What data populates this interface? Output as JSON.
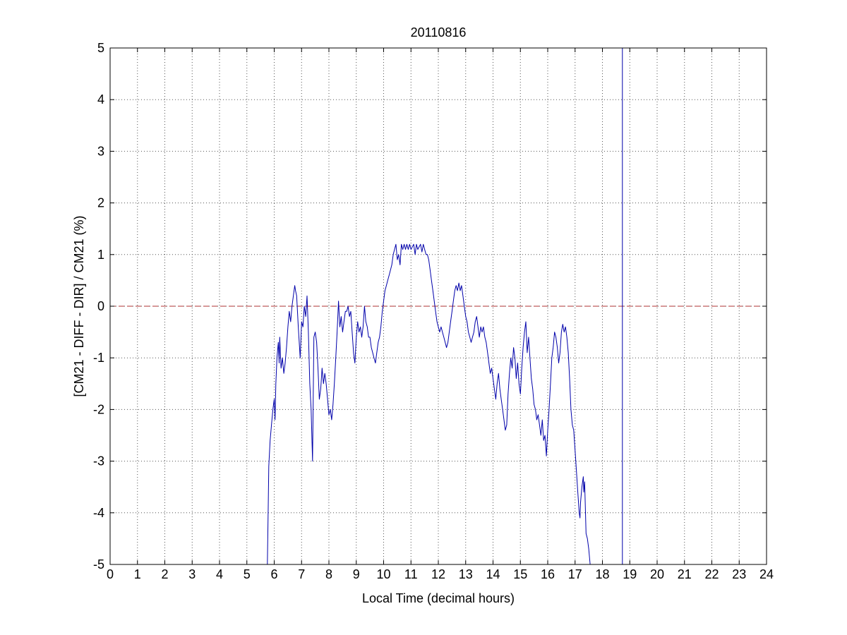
{
  "chart_data": {
    "type": "line",
    "title": "20110816",
    "xlabel": "Local Time (decimal hours)",
    "ylabel": "[CM21 - DIFF - DIR] / CM21 (%)",
    "xlim": [
      0,
      24
    ],
    "ylim": [
      -5,
      5
    ],
    "xticks": [
      "0",
      "1",
      "2",
      "3",
      "4",
      "5",
      "6",
      "7",
      "8",
      "9",
      "10",
      "11",
      "12",
      "13",
      "14",
      "15",
      "16",
      "17",
      "18",
      "19",
      "20",
      "21",
      "22",
      "23",
      "24"
    ],
    "yticks": [
      "5",
      "4",
      "3",
      "2",
      "1",
      "0",
      "-1",
      "-2",
      "-3",
      "-4",
      "-5"
    ],
    "grid": true,
    "colors": {
      "series": "#0000aa",
      "reference": "#b03030",
      "grid": "#555555"
    },
    "reference_line": {
      "y": 0,
      "style": "dashed"
    },
    "vertical_line": {
      "x": 18.73,
      "y_from": -5,
      "y_to": 5
    },
    "series": [
      {
        "color": "#0000aa",
        "points": [
          [
            5.75,
            -5.0
          ],
          [
            5.78,
            -3.9
          ],
          [
            5.8,
            -3.1
          ],
          [
            5.85,
            -2.6
          ],
          [
            5.9,
            -2.3
          ],
          [
            5.95,
            -2.0
          ],
          [
            6.0,
            -1.8
          ],
          [
            6.03,
            -2.2
          ],
          [
            6.06,
            -1.5
          ],
          [
            6.1,
            -1.0
          ],
          [
            6.15,
            -0.7
          ],
          [
            6.18,
            -1.1
          ],
          [
            6.2,
            -0.6
          ],
          [
            6.25,
            -1.2
          ],
          [
            6.3,
            -1.0
          ],
          [
            6.35,
            -1.3
          ],
          [
            6.4,
            -1.1
          ],
          [
            6.45,
            -0.8
          ],
          [
            6.5,
            -0.4
          ],
          [
            6.55,
            -0.1
          ],
          [
            6.6,
            -0.3
          ],
          [
            6.65,
            0.0
          ],
          [
            6.7,
            0.2
          ],
          [
            6.75,
            0.4
          ],
          [
            6.78,
            0.3
          ],
          [
            6.82,
            0.2
          ],
          [
            6.88,
            -0.4
          ],
          [
            6.95,
            -1.0
          ],
          [
            7.0,
            -0.3
          ],
          [
            7.05,
            -0.4
          ],
          [
            7.1,
            0.0
          ],
          [
            7.15,
            -0.2
          ],
          [
            7.2,
            0.2
          ],
          [
            7.25,
            -0.5
          ],
          [
            7.3,
            -1.5
          ],
          [
            7.35,
            -2.0
          ],
          [
            7.4,
            -3.0
          ],
          [
            7.45,
            -0.6
          ],
          [
            7.5,
            -0.5
          ],
          [
            7.55,
            -0.7
          ],
          [
            7.6,
            -1.2
          ],
          [
            7.65,
            -1.8
          ],
          [
            7.7,
            -1.6
          ],
          [
            7.75,
            -1.2
          ],
          [
            7.8,
            -1.5
          ],
          [
            7.85,
            -1.3
          ],
          [
            7.9,
            -1.5
          ],
          [
            7.95,
            -1.8
          ],
          [
            8.0,
            -2.1
          ],
          [
            8.05,
            -2.0
          ],
          [
            8.1,
            -2.2
          ],
          [
            8.15,
            -1.9
          ],
          [
            8.2,
            -1.5
          ],
          [
            8.25,
            -1.0
          ],
          [
            8.3,
            -0.5
          ],
          [
            8.35,
            0.1
          ],
          [
            8.4,
            -0.4
          ],
          [
            8.45,
            -0.2
          ],
          [
            8.5,
            -0.5
          ],
          [
            8.55,
            -0.3
          ],
          [
            8.6,
            -0.1
          ],
          [
            8.65,
            -0.1
          ],
          [
            8.7,
            0.0
          ],
          [
            8.75,
            -0.2
          ],
          [
            8.8,
            -0.1
          ],
          [
            8.85,
            -0.5
          ],
          [
            8.9,
            -0.9
          ],
          [
            8.95,
            -1.1
          ],
          [
            9.0,
            -0.6
          ],
          [
            9.05,
            -0.3
          ],
          [
            9.1,
            -0.5
          ],
          [
            9.15,
            -0.4
          ],
          [
            9.2,
            -0.6
          ],
          [
            9.25,
            -0.4
          ],
          [
            9.3,
            0.0
          ],
          [
            9.35,
            -0.3
          ],
          [
            9.4,
            -0.4
          ],
          [
            9.45,
            -0.6
          ],
          [
            9.5,
            -0.6
          ],
          [
            9.55,
            -0.8
          ],
          [
            9.6,
            -0.9
          ],
          [
            9.65,
            -1.0
          ],
          [
            9.7,
            -1.1
          ],
          [
            9.75,
            -0.9
          ],
          [
            9.8,
            -0.7
          ],
          [
            9.85,
            -0.6
          ],
          [
            9.9,
            -0.4
          ],
          [
            9.95,
            -0.1
          ],
          [
            10.0,
            0.1
          ],
          [
            10.05,
            0.3
          ],
          [
            10.1,
            0.4
          ],
          [
            10.15,
            0.5
          ],
          [
            10.2,
            0.6
          ],
          [
            10.25,
            0.7
          ],
          [
            10.3,
            0.8
          ],
          [
            10.35,
            1.0
          ],
          [
            10.4,
            1.1
          ],
          [
            10.45,
            1.2
          ],
          [
            10.5,
            0.9
          ],
          [
            10.55,
            1.0
          ],
          [
            10.6,
            0.8
          ],
          [
            10.65,
            1.2
          ],
          [
            10.7,
            1.1
          ],
          [
            10.75,
            1.2
          ],
          [
            10.8,
            1.1
          ],
          [
            10.85,
            1.2
          ],
          [
            10.9,
            1.1
          ],
          [
            10.95,
            1.2
          ],
          [
            11.0,
            1.1
          ],
          [
            11.05,
            1.15
          ],
          [
            11.1,
            1.2
          ],
          [
            11.15,
            1.0
          ],
          [
            11.2,
            1.2
          ],
          [
            11.25,
            1.1
          ],
          [
            11.3,
            1.15
          ],
          [
            11.35,
            1.2
          ],
          [
            11.4,
            1.05
          ],
          [
            11.45,
            1.2
          ],
          [
            11.5,
            1.1
          ],
          [
            11.55,
            1.0
          ],
          [
            11.6,
            1.0
          ],
          [
            11.65,
            0.9
          ],
          [
            11.7,
            0.7
          ],
          [
            11.75,
            0.5
          ],
          [
            11.8,
            0.3
          ],
          [
            11.85,
            0.1
          ],
          [
            11.9,
            -0.1
          ],
          [
            11.95,
            -0.3
          ],
          [
            12.0,
            -0.4
          ],
          [
            12.05,
            -0.5
          ],
          [
            12.1,
            -0.4
          ],
          [
            12.15,
            -0.5
          ],
          [
            12.2,
            -0.6
          ],
          [
            12.25,
            -0.7
          ],
          [
            12.3,
            -0.8
          ],
          [
            12.35,
            -0.7
          ],
          [
            12.4,
            -0.5
          ],
          [
            12.45,
            -0.3
          ],
          [
            12.5,
            -0.1
          ],
          [
            12.55,
            0.1
          ],
          [
            12.6,
            0.3
          ],
          [
            12.65,
            0.4
          ],
          [
            12.7,
            0.3
          ],
          [
            12.75,
            0.45
          ],
          [
            12.8,
            0.3
          ],
          [
            12.85,
            0.4
          ],
          [
            12.9,
            0.2
          ],
          [
            12.95,
            0.0
          ],
          [
            13.0,
            -0.2
          ],
          [
            13.05,
            -0.3
          ],
          [
            13.1,
            -0.5
          ],
          [
            13.15,
            -0.6
          ],
          [
            13.2,
            -0.7
          ],
          [
            13.25,
            -0.6
          ],
          [
            13.3,
            -0.5
          ],
          [
            13.35,
            -0.3
          ],
          [
            13.4,
            -0.2
          ],
          [
            13.45,
            -0.4
          ],
          [
            13.5,
            -0.6
          ],
          [
            13.55,
            -0.4
          ],
          [
            13.6,
            -0.5
          ],
          [
            13.65,
            -0.4
          ],
          [
            13.7,
            -0.6
          ],
          [
            13.75,
            -0.7
          ],
          [
            13.8,
            -0.9
          ],
          [
            13.85,
            -1.1
          ],
          [
            13.9,
            -1.3
          ],
          [
            13.95,
            -1.2
          ],
          [
            14.0,
            -1.4
          ],
          [
            14.05,
            -1.6
          ],
          [
            14.1,
            -1.8
          ],
          [
            14.15,
            -1.5
          ],
          [
            14.2,
            -1.3
          ],
          [
            14.25,
            -1.6
          ],
          [
            14.3,
            -1.8
          ],
          [
            14.35,
            -2.0
          ],
          [
            14.4,
            -2.2
          ],
          [
            14.45,
            -2.4
          ],
          [
            14.5,
            -2.3
          ],
          [
            14.55,
            -1.7
          ],
          [
            14.6,
            -1.3
          ],
          [
            14.65,
            -1.0
          ],
          [
            14.7,
            -1.2
          ],
          [
            14.75,
            -0.8
          ],
          [
            14.8,
            -1.0
          ],
          [
            14.85,
            -1.4
          ],
          [
            14.9,
            -1.1
          ],
          [
            14.95,
            -1.5
          ],
          [
            15.0,
            -1.7
          ],
          [
            15.05,
            -1.2
          ],
          [
            15.1,
            -0.8
          ],
          [
            15.15,
            -0.5
          ],
          [
            15.2,
            -0.3
          ],
          [
            15.25,
            -0.9
          ],
          [
            15.3,
            -0.6
          ],
          [
            15.35,
            -1.0
          ],
          [
            15.4,
            -1.4
          ],
          [
            15.45,
            -1.6
          ],
          [
            15.5,
            -1.9
          ],
          [
            15.55,
            -2.0
          ],
          [
            15.6,
            -2.2
          ],
          [
            15.65,
            -2.1
          ],
          [
            15.7,
            -2.3
          ],
          [
            15.75,
            -2.5
          ],
          [
            15.8,
            -2.2
          ],
          [
            15.85,
            -2.6
          ],
          [
            15.9,
            -2.5
          ],
          [
            15.95,
            -2.9
          ],
          [
            16.0,
            -2.4
          ],
          [
            16.05,
            -2.0
          ],
          [
            16.1,
            -1.5
          ],
          [
            16.15,
            -1.0
          ],
          [
            16.2,
            -0.8
          ],
          [
            16.25,
            -0.5
          ],
          [
            16.3,
            -0.6
          ],
          [
            16.35,
            -0.8
          ],
          [
            16.4,
            -1.1
          ],
          [
            16.45,
            -0.9
          ],
          [
            16.5,
            -0.5
          ],
          [
            16.55,
            -0.35
          ],
          [
            16.6,
            -0.5
          ],
          [
            16.65,
            -0.4
          ],
          [
            16.7,
            -0.6
          ],
          [
            16.75,
            -0.9
          ],
          [
            16.8,
            -1.4
          ],
          [
            16.85,
            -2.0
          ],
          [
            16.9,
            -2.3
          ],
          [
            16.95,
            -2.4
          ],
          [
            17.0,
            -2.8
          ],
          [
            17.05,
            -3.2
          ],
          [
            17.1,
            -3.6
          ],
          [
            17.15,
            -4.0
          ],
          [
            17.18,
            -4.1
          ],
          [
            17.2,
            -3.8
          ],
          [
            17.25,
            -3.5
          ],
          [
            17.3,
            -3.3
          ],
          [
            17.32,
            -3.6
          ],
          [
            17.35,
            -3.4
          ],
          [
            17.4,
            -4.4
          ],
          [
            17.45,
            -4.5
          ],
          [
            17.5,
            -4.7
          ],
          [
            17.55,
            -5.0
          ]
        ]
      }
    ]
  }
}
